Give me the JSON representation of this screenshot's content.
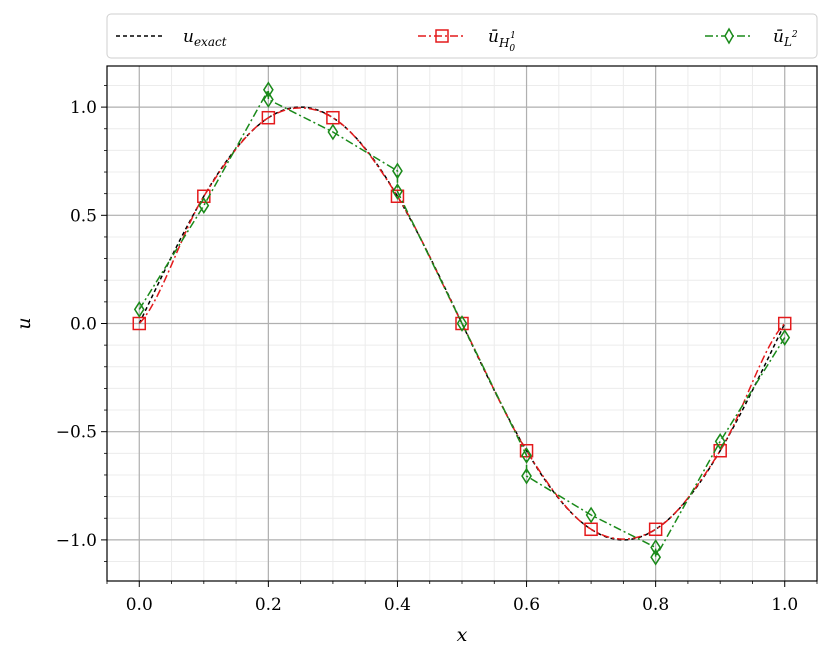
{
  "chart_data": {
    "type": "line",
    "xlabel": "x",
    "ylabel": "u",
    "xlim": [
      -0.05,
      1.05
    ],
    "ylim": [
      -1.19,
      1.19
    ],
    "x_ticks": [
      0.0,
      0.2,
      0.4,
      0.6,
      0.8,
      1.0
    ],
    "x_tick_labels": [
      "0.0",
      "0.2",
      "0.4",
      "0.6",
      "0.8",
      "1.0"
    ],
    "y_ticks": [
      -1.0,
      -0.5,
      0.0,
      0.5,
      1.0
    ],
    "y_tick_labels": [
      "−1.0",
      "−0.5",
      "0.0",
      "0.5",
      "1.0"
    ],
    "grid": {
      "major": true,
      "minor": true
    },
    "legend_placement": "top, above plot",
    "legend": {
      "exact": {
        "base": "u",
        "sub": "exact"
      },
      "h1": {
        "base": "ū",
        "sub": "H",
        "subsub": "0",
        "sup": "1"
      },
      "l2": {
        "base": "ū",
        "sub": "L",
        "sup": "2"
      }
    },
    "series": [
      {
        "id": "exact",
        "style": "dashed",
        "marker": "none",
        "color": "#000000",
        "function": "sin(2*pi*x)"
      },
      {
        "id": "h1",
        "style": "dashdot",
        "marker": "square",
        "color": "#e41a1c",
        "x": [
          0.0,
          0.1,
          0.2,
          0.3,
          0.4,
          0.5,
          0.6,
          0.7,
          0.8,
          0.9,
          1.0
        ],
        "y": [
          0.0,
          0.588,
          0.951,
          0.951,
          0.588,
          0.0,
          -0.588,
          -0.951,
          -0.951,
          -0.588,
          0.0
        ]
      },
      {
        "id": "l2",
        "style": "dashdot",
        "marker": "diamond",
        "color": "#1a8a1a",
        "x": [
          0.0,
          0.1,
          0.2,
          0.2,
          0.3,
          0.4,
          0.4,
          0.5,
          0.6,
          0.6,
          0.7,
          0.8,
          0.8,
          0.9,
          1.0
        ],
        "y": [
          0.065,
          0.545,
          1.08,
          1.035,
          0.885,
          0.705,
          0.61,
          0.0,
          -0.61,
          -0.705,
          -0.885,
          -1.035,
          -1.08,
          -0.545,
          -0.065
        ]
      }
    ]
  }
}
